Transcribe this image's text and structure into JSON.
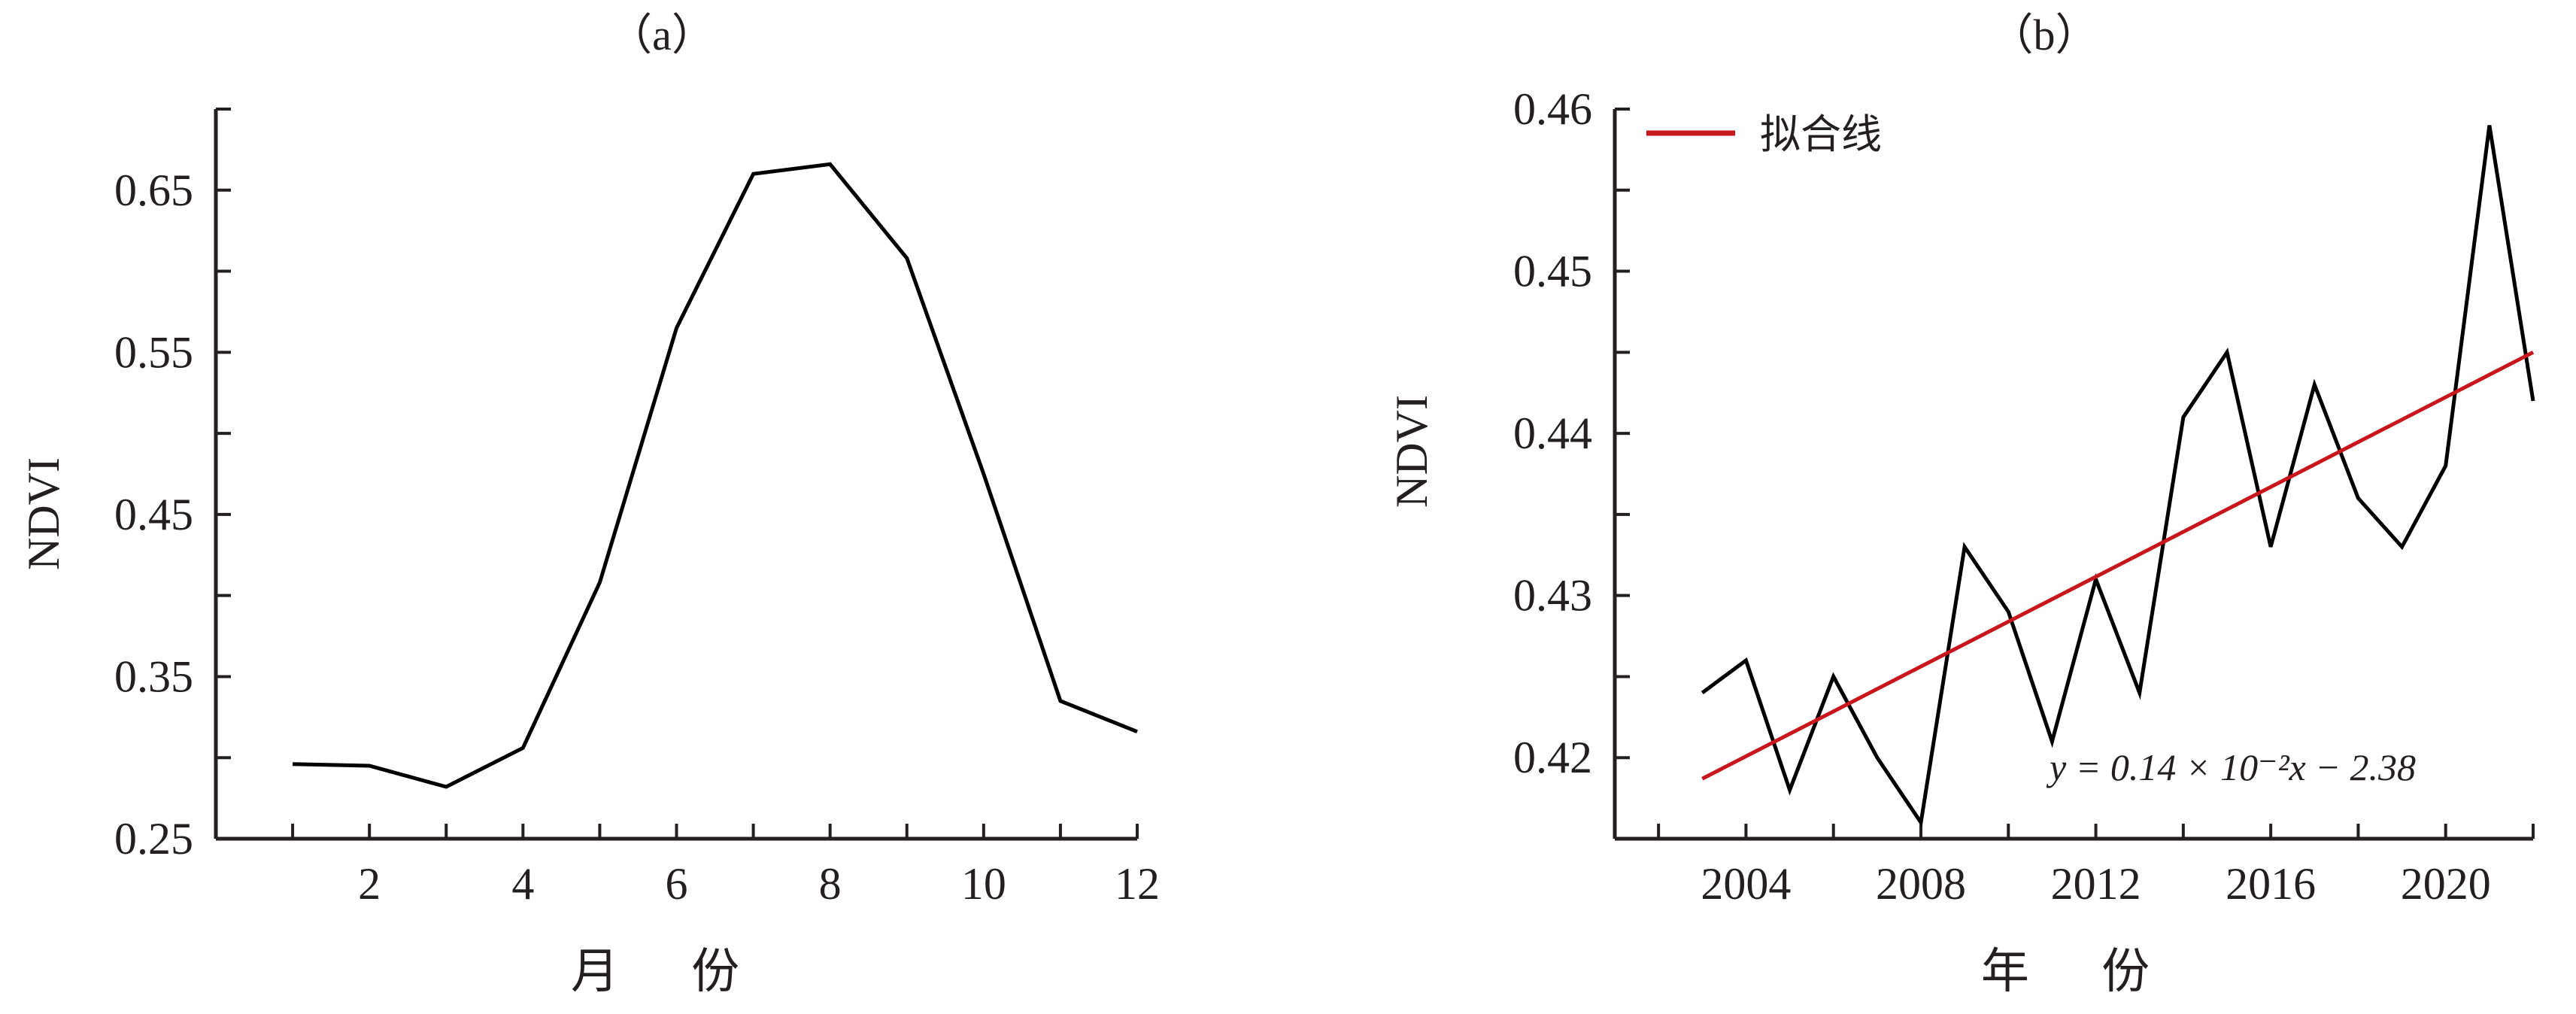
{
  "chart_data": [
    {
      "type": "line",
      "title": "（a）",
      "xlabel": "月 份",
      "ylabel": "NDVI",
      "xlim": [
        0,
        12
      ],
      "ylim": [
        0.25,
        0.7
      ],
      "x_ticks": [
        "2",
        "4",
        "6",
        "8",
        "10",
        "12"
      ],
      "y_ticks": [
        "0.25",
        "0.35",
        "0.45",
        "0.55",
        "0.65"
      ],
      "series": [
        {
          "x": [
            1,
            2,
            3,
            4,
            5,
            6,
            7,
            8,
            9,
            10,
            11,
            12
          ],
          "values": [
            0.296,
            0.295,
            0.282,
            0.306,
            0.408,
            0.565,
            0.66,
            0.666,
            0.608,
            0.475,
            0.335,
            0.316
          ],
          "color": "#000000"
        }
      ],
      "grid": false
    },
    {
      "type": "line",
      "title": "（b）",
      "xlabel": "年 份",
      "ylabel": "NDVI",
      "xlim": [
        2001,
        2022
      ],
      "ylim": [
        0.415,
        0.46
      ],
      "x_ticks": [
        "2004",
        "2008",
        "2012",
        "2016",
        "2020"
      ],
      "y_ticks": [
        "0.42",
        "0.43",
        "0.44",
        "0.45",
        "0.46"
      ],
      "series": [
        {
          "x": [
            2003,
            2004,
            2005,
            2006,
            2007,
            2008,
            2009,
            2010,
            2011,
            2012,
            2013,
            2014,
            2015,
            2016,
            2017,
            2018,
            2019,
            2020,
            2021,
            2022
          ],
          "values": [
            0.424,
            0.426,
            0.418,
            0.425,
            0.42,
            0.416,
            0.433,
            0.429,
            0.421,
            0.431,
            0.424,
            0.441,
            0.445,
            0.433,
            0.443,
            0.436,
            0.433,
            0.438,
            0.459,
            0.442
          ],
          "color": "#000000"
        },
        {
          "name": "拟合线",
          "x": [
            2003,
            2022
          ],
          "values": [
            0.4187,
            0.445
          ],
          "color": "#c8161d"
        }
      ],
      "legend": "top-left",
      "annotation": "y = 0.14 × 10⁻²x − 2.38",
      "grid": false
    }
  ]
}
